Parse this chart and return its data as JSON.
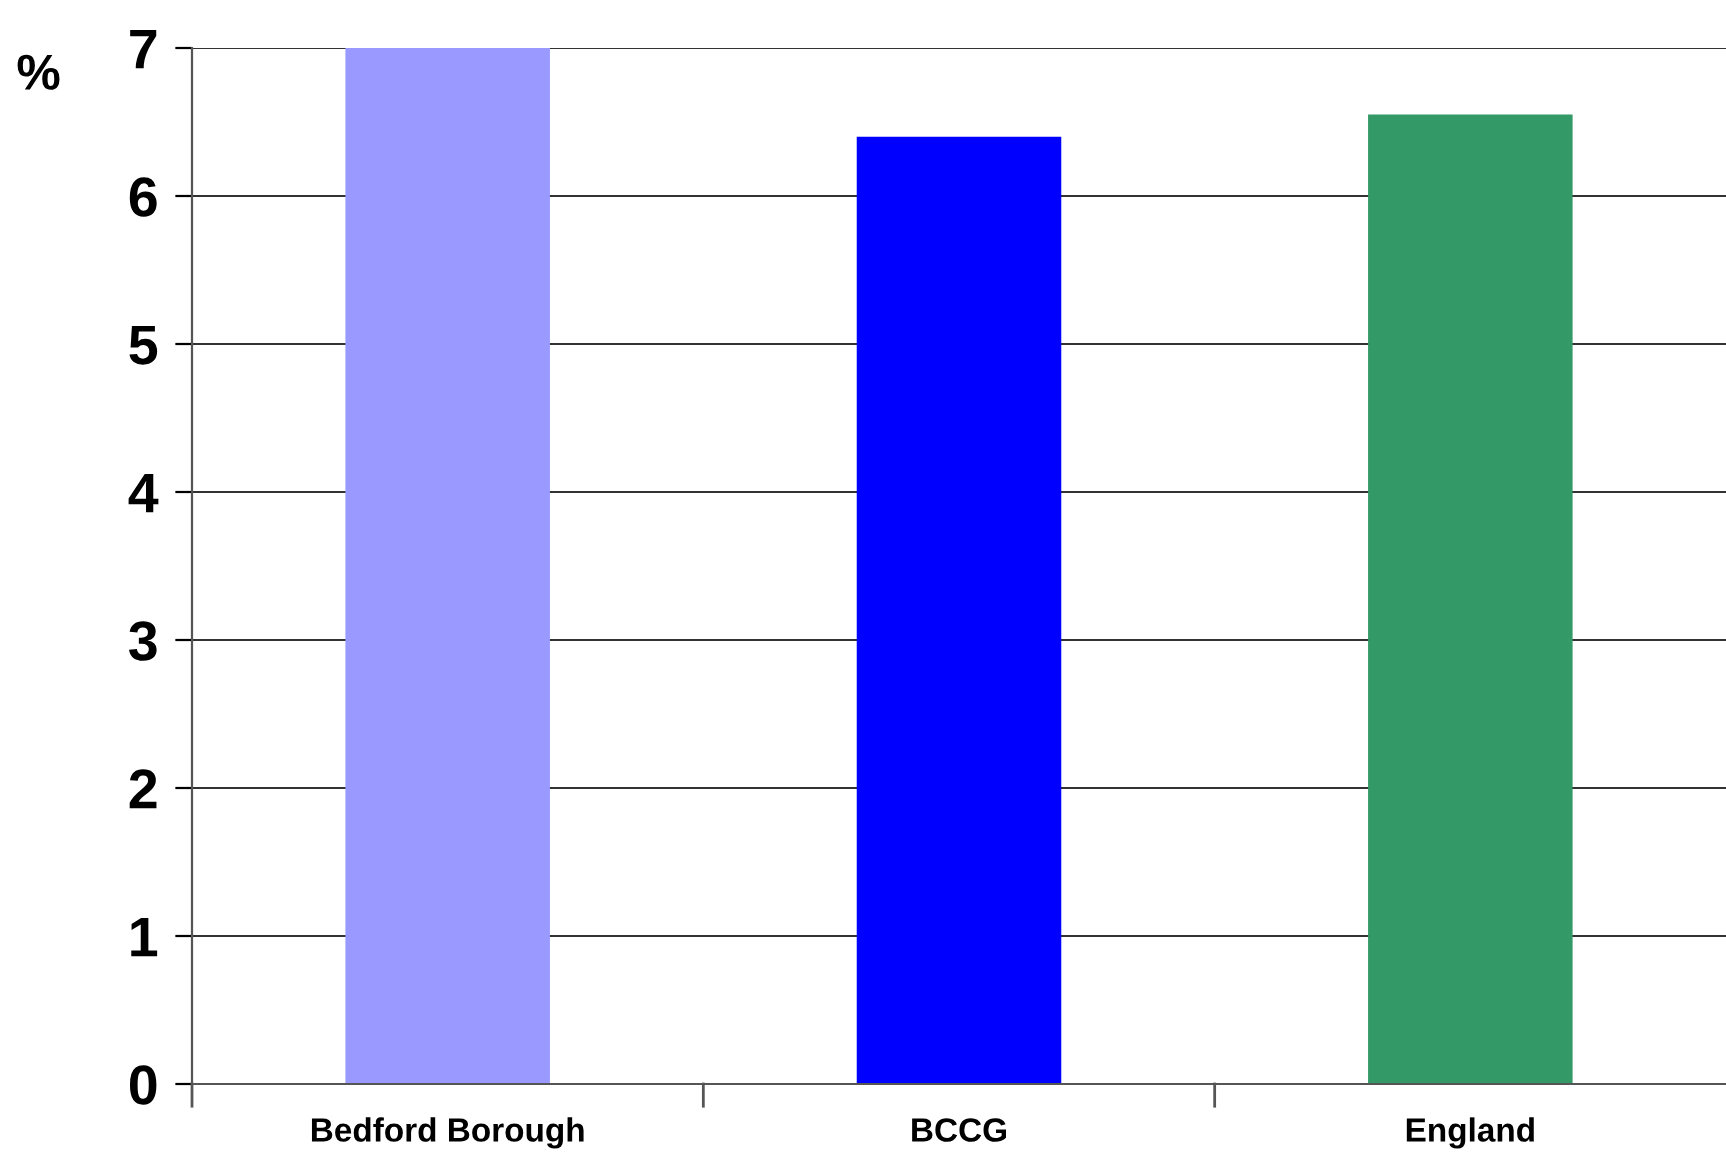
{
  "chart_data": {
    "type": "bar",
    "ylabel": "%",
    "categories": [
      "Bedford Borough",
      "BCCG",
      "England"
    ],
    "values": [
      7.0,
      6.4,
      6.55
    ],
    "colors": [
      "#9999ff",
      "#0000ff",
      "#339966"
    ],
    "ylim": [
      0,
      7
    ],
    "yticks": [
      0,
      1,
      2,
      3,
      4,
      5,
      6,
      7
    ],
    "grid": "y",
    "legend": false
  }
}
